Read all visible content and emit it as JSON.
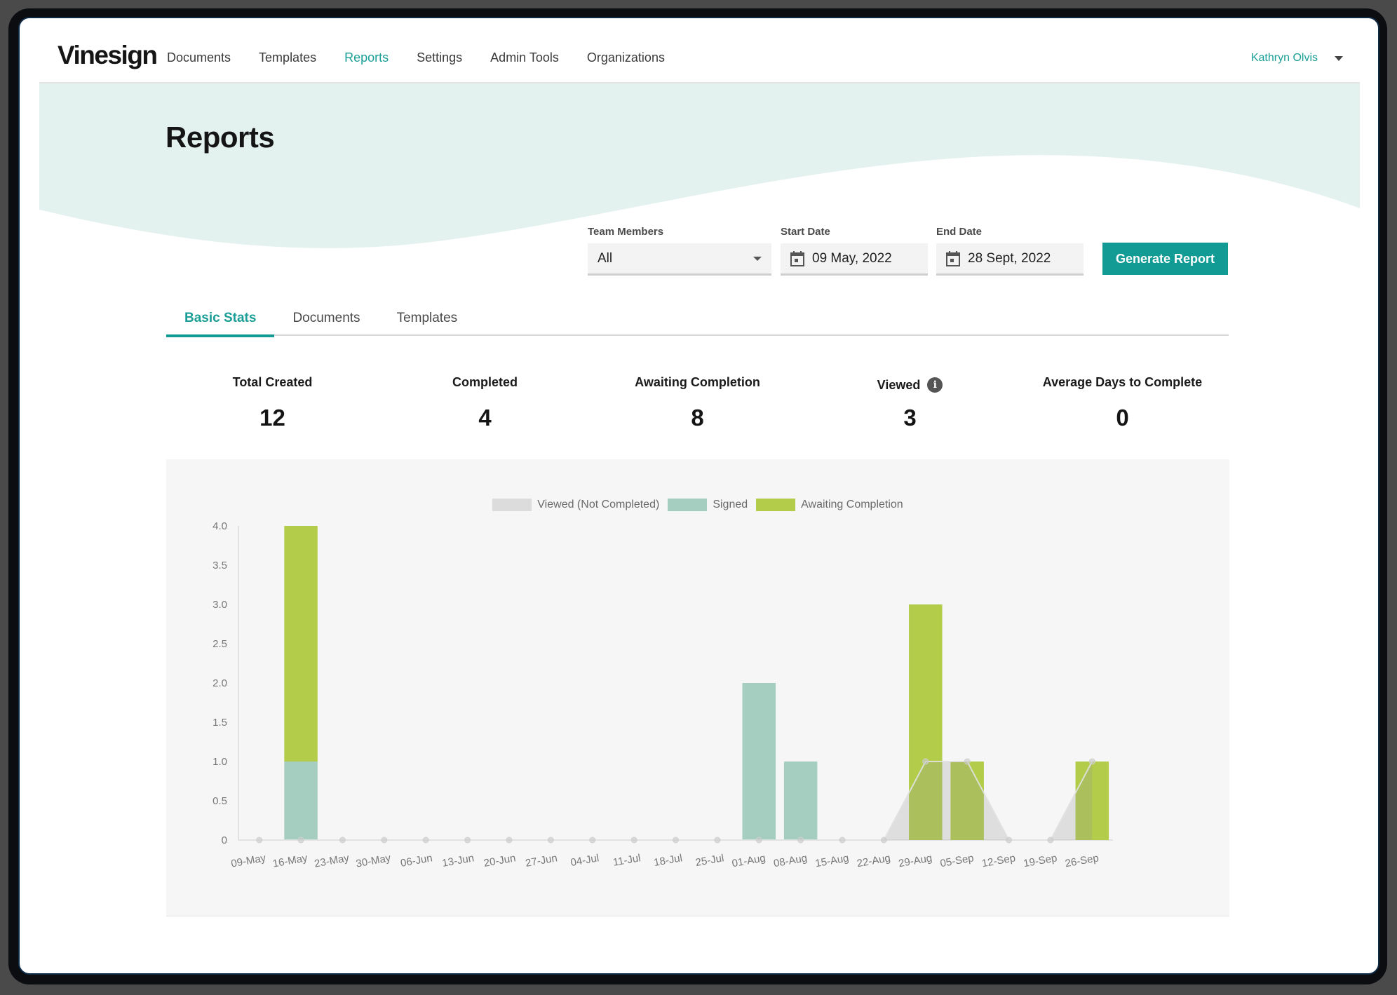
{
  "app": {
    "logo": "Vinesign"
  },
  "nav": {
    "items": [
      {
        "label": "Documents",
        "active": false
      },
      {
        "label": "Templates",
        "active": false
      },
      {
        "label": "Reports",
        "active": true
      },
      {
        "label": "Settings",
        "active": false
      },
      {
        "label": "Admin Tools",
        "active": false
      },
      {
        "label": "Organizations",
        "active": false
      }
    ],
    "user": {
      "name": "Kathryn Olvis"
    }
  },
  "page": {
    "title": "Reports"
  },
  "filters": {
    "team_members": {
      "label": "Team Members",
      "value": "All"
    },
    "start_date": {
      "label": "Start Date",
      "value": "09 May, 2022"
    },
    "end_date": {
      "label": "End Date",
      "value": "28 Sept, 2022"
    },
    "generate_label": "Generate Report"
  },
  "tabs": [
    {
      "label": "Basic Stats",
      "active": true
    },
    {
      "label": "Documents",
      "active": false
    },
    {
      "label": "Templates",
      "active": false
    }
  ],
  "stats": [
    {
      "label": "Total Created",
      "value": "12",
      "info": false
    },
    {
      "label": "Completed",
      "value": "4",
      "info": false
    },
    {
      "label": "Awaiting Completion",
      "value": "8",
      "info": false
    },
    {
      "label": "Viewed",
      "value": "3",
      "info": true
    },
    {
      "label": "Average Days to Complete",
      "value": "0",
      "info": false
    }
  ],
  "colors": {
    "accent": "#129b94",
    "signed": "#a5cdc0",
    "awaiting": "#b3cd4a",
    "viewed": "#dcdcdc",
    "banner": "#e4f2ef"
  },
  "chart_data": {
    "type": "bar",
    "stacked": true,
    "title": "",
    "xlabel": "",
    "ylabel": "",
    "ylim": [
      0,
      4.0
    ],
    "yticks": [
      "0",
      "0.5",
      "1.0",
      "1.5",
      "2.0",
      "2.5",
      "3.0",
      "3.5",
      "4.0"
    ],
    "grid": false,
    "legend_position": "top",
    "categories": [
      "09-May",
      "16-May",
      "23-May",
      "30-May",
      "06-Jun",
      "13-Jun",
      "20-Jun",
      "27-Jun",
      "04-Jul",
      "11-Jul",
      "18-Jul",
      "25-Jul",
      "01-Aug",
      "08-Aug",
      "15-Aug",
      "22-Aug",
      "29-Aug",
      "05-Sep",
      "12-Sep",
      "19-Sep",
      "26-Sep"
    ],
    "series": [
      {
        "name": "Viewed (Not Completed)",
        "type": "area",
        "color": "#dcdcdc",
        "values": [
          0,
          0,
          0,
          0,
          0,
          0,
          0,
          0,
          0,
          0,
          0,
          0,
          0,
          0,
          0,
          0,
          1,
          1,
          0,
          0,
          1
        ]
      },
      {
        "name": "Signed",
        "type": "bar",
        "color": "#a5cdc0",
        "values": [
          0,
          1,
          0,
          0,
          0,
          0,
          0,
          0,
          0,
          0,
          0,
          0,
          2,
          1,
          0,
          0,
          0,
          0,
          0,
          0,
          0
        ]
      },
      {
        "name": "Awaiting Completion",
        "type": "bar",
        "color": "#b3cd4a",
        "values": [
          0,
          3,
          0,
          0,
          0,
          0,
          0,
          0,
          0,
          0,
          0,
          0,
          0,
          0,
          0,
          0,
          3,
          1,
          0,
          0,
          1
        ]
      }
    ]
  }
}
